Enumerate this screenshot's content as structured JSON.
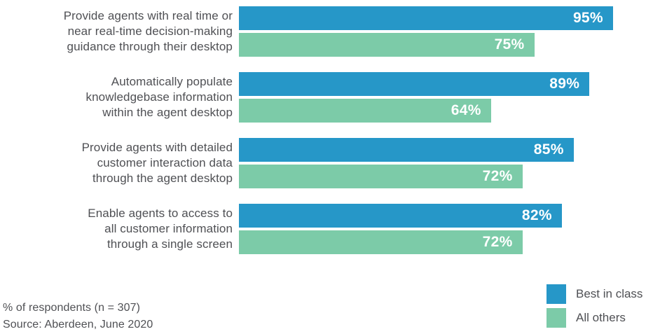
{
  "chart_data": {
    "type": "bar",
    "orientation": "horizontal",
    "title": "",
    "xlabel": "",
    "ylabel": "",
    "xlim": [
      0,
      100
    ],
    "grid": false,
    "legend_position": "bottom-right",
    "categories": [
      "Provide agents with real time or\nnear real-time decision-making\nguidance through their desktop",
      "Automatically populate\nknowledgebase information\nwithin the agent desktop",
      "Provide agents with detailed\ncustomer interaction data\nthrough the agent desktop",
      "Enable agents to access to\nall customer information\nthrough a single screen"
    ],
    "series": [
      {
        "name": "Best in class",
        "color": "#2697C8",
        "values": [
          95,
          89,
          85,
          82
        ]
      },
      {
        "name": "All others",
        "color": "#7CCBA8",
        "values": [
          75,
          64,
          72,
          72
        ]
      }
    ],
    "value_labels": [
      [
        "95%",
        "75%"
      ],
      [
        "89%",
        "64%"
      ],
      [
        "85%",
        "72%"
      ],
      [
        "82%",
        "72%"
      ]
    ]
  },
  "legend": {
    "items": [
      {
        "label": "Best in class",
        "color": "#2697C8"
      },
      {
        "label": "All others",
        "color": "#7CCBA8"
      }
    ]
  },
  "footer": {
    "line1": "% of respondents (n = 307)",
    "line2": "Source: Aberdeen, June 2020"
  }
}
